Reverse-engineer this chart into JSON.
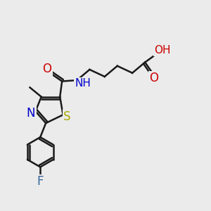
{
  "bg_color": "#ebebeb",
  "bond_color": "#1a1a1a",
  "bond_width": 1.8,
  "atoms": {
    "S": {
      "color": "#aaaa00"
    },
    "N": {
      "color": "#0000cc"
    },
    "O": {
      "color": "#cc0000"
    },
    "F": {
      "color": "#336699"
    },
    "NH": {
      "color": "#0000cc"
    },
    "OH": {
      "color": "#cc0000"
    }
  },
  "fontsize": 11
}
